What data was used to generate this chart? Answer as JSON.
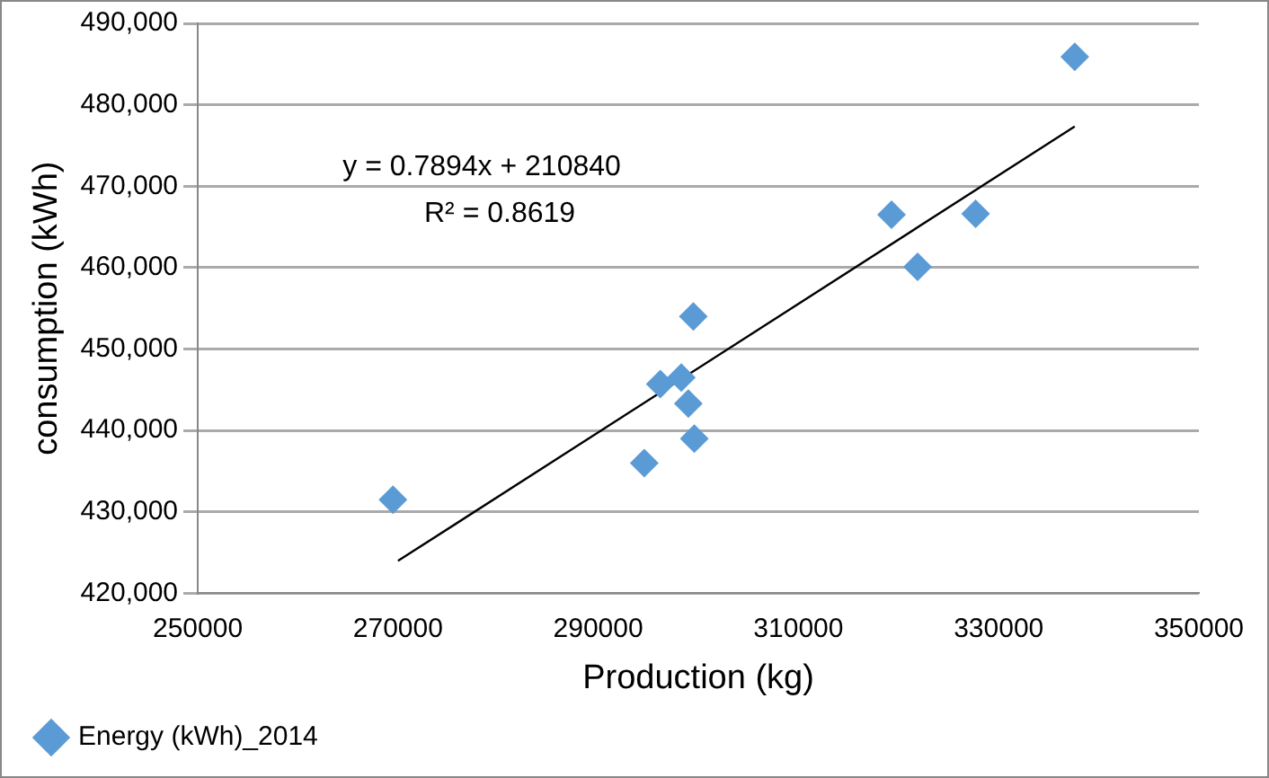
{
  "chart_data": {
    "type": "scatter",
    "xlabel": "Production (kg)",
    "ylabel": "consumption (kWh)",
    "xlim": [
      250000,
      350000
    ],
    "xticks": [
      250000,
      270000,
      290000,
      310000,
      330000,
      350000
    ],
    "ylim": [
      420000,
      490000
    ],
    "yticks": [
      {
        "value": 420000,
        "label": "420,000"
      },
      {
        "value": 430000,
        "label": "430,000"
      },
      {
        "value": 440000,
        "label": "440,000"
      },
      {
        "value": 450000,
        "label": "450,000"
      },
      {
        "value": 460000,
        "label": "460,000"
      },
      {
        "value": 470000,
        "label": "470,000"
      },
      {
        "value": 480000,
        "label": "480,000"
      },
      {
        "value": 490000,
        "label": "490,000"
      }
    ],
    "grid": "y",
    "legend": "bottom left",
    "marker": "diamond",
    "series": [
      {
        "name": "Energy (kWh)_2014",
        "color": "#5b9bd5",
        "x": [
          269500,
          294600,
          299600,
          299500,
          296200,
          298300,
          299000,
          319300,
          327700,
          321900,
          337600
        ],
        "values": [
          431500,
          436000,
          439000,
          454000,
          445700,
          446500,
          443300,
          466500,
          466600,
          460100,
          485900
        ]
      },
      {
        "type": "line",
        "color": "#000000",
        "marker": "none",
        "x": [
          270000,
          337600
        ],
        "values": [
          423978,
          477342
        ]
      }
    ],
    "annotations": [
      "y = 0.7894x + 210840",
      "R² = 0.8619"
    ]
  }
}
